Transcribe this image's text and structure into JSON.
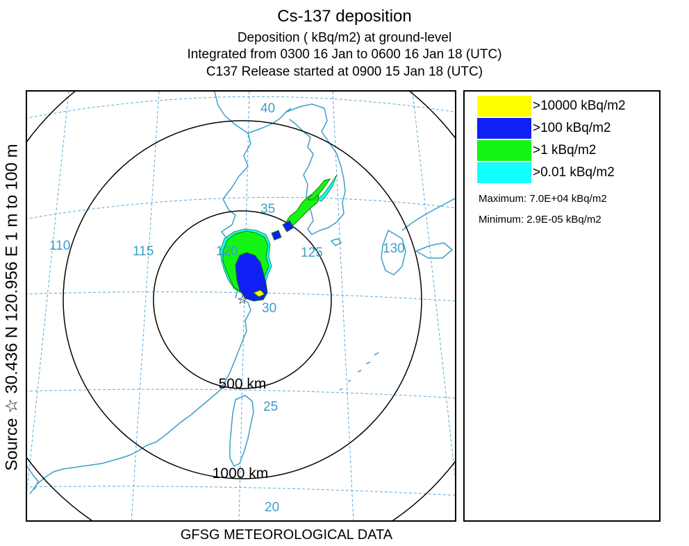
{
  "header": {
    "title": "Cs-137 deposition",
    "subtitle_1": "Deposition  ( kBq/m2) at ground-level",
    "subtitle_2": "Integrated from 0300 16 Jan to 0600 16 Jan 18 (UTC)",
    "subtitle_3": "C137 Release started at 0900 15 Jan 18 (UTC)"
  },
  "side_label": "Source ☆ 30.436 N 120.956 E      1 m to  100 m",
  "map": {
    "longitude_labels": [
      "110",
      "115",
      "120",
      "125",
      "130"
    ],
    "latitude_labels": [
      "40",
      "35",
      "30",
      "25",
      "20"
    ],
    "range_rings": [
      "500 km",
      "1000 km"
    ],
    "source_marker": "☆",
    "colors": {
      "coastline": "#3a9ec9",
      "graticule": "#5aaad8",
      "rings": "#000000"
    }
  },
  "legend": {
    "items": [
      {
        "label": ">10000  kBq/m2",
        "color": "#ffff00"
      },
      {
        "label": ">100  kBq/m2",
        "color": "#0f1ff5"
      },
      {
        "label": ">1  kBq/m2",
        "color": "#14f514"
      },
      {
        "label": ">0.01  kBq/m2",
        "color": "#14ffff"
      }
    ],
    "maximum": "Maximum: 7.0E+04  kBq/m2",
    "minimum": "Minimum: 2.9E-05  kBq/m2"
  },
  "footer": "GFSG METEOROLOGICAL DATA"
}
